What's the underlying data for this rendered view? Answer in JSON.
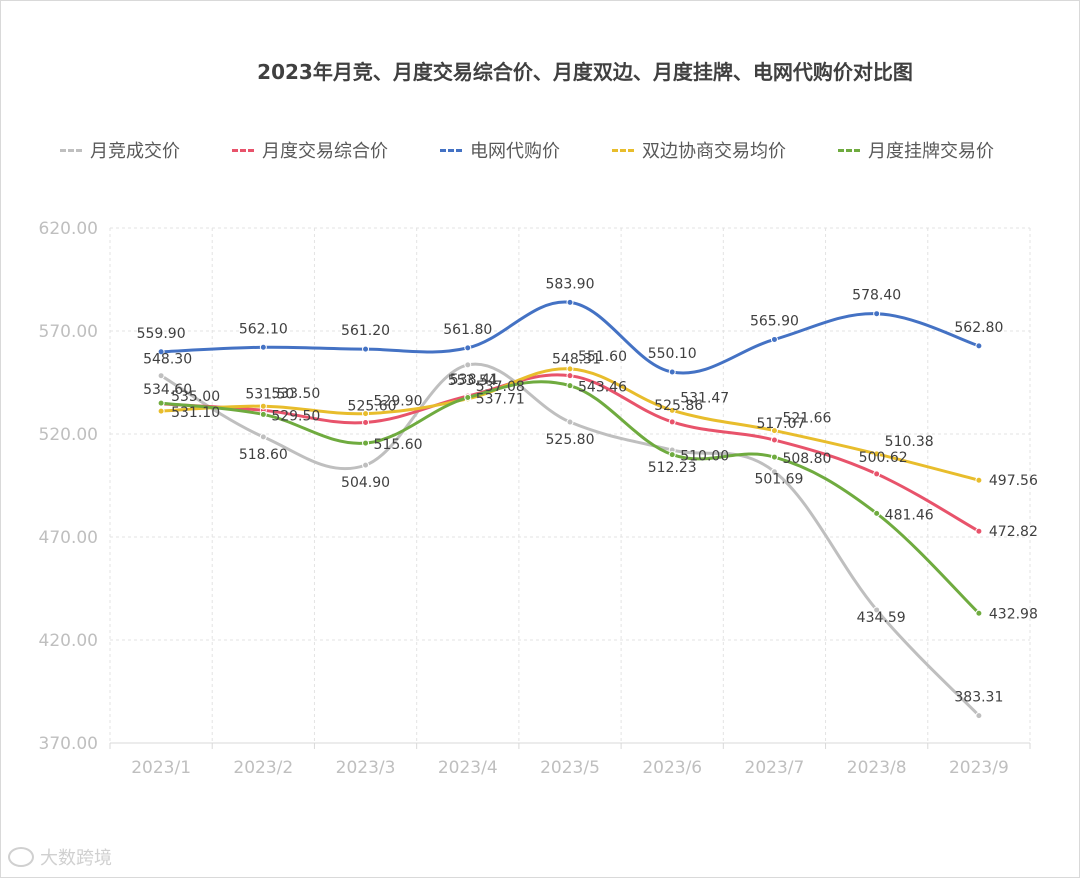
{
  "chart_data": {
    "type": "line",
    "title": "2023年月竞、月度交易综合价、月度双边、月度挂牌、电网代购价对比图",
    "categories": [
      "2023/1",
      "2023/2",
      "2023/3",
      "2023/4",
      "2023/5",
      "2023/6",
      "2023/7",
      "2023/8",
      "2023/9"
    ],
    "ylim": [
      370,
      620
    ],
    "yticks": [
      "370.00",
      "420.00",
      "470.00",
      "520.00",
      "570.00",
      "620.00"
    ],
    "ytick_values": [
      370,
      420,
      470,
      520,
      570,
      620
    ],
    "grid": true,
    "legend_position": "top",
    "series": [
      {
        "name": "月竞成交价",
        "color": "#bfbfbf",
        "values": [
          548.3,
          518.6,
          504.9,
          553.54,
          525.8,
          512.23,
          501.69,
          434.59,
          383.31
        ],
        "labels": [
          "548.30",
          "518.60",
          "504.90",
          "553.54",
          "525.80",
          "512.23",
          "501.69",
          "434.59",
          "383.31"
        ]
      },
      {
        "name": "月度交易综合价",
        "color": "#e8536b",
        "values": [
          534.6,
          531.5,
          525.6,
          538.41,
          548.31,
          525.86,
          517.07,
          500.62,
          472.82
        ],
        "labels": [
          "534.60",
          "531.50",
          "525.60",
          "538.41",
          "548.31",
          "525.86",
          "517.07",
          "500.62",
          "472.82"
        ]
      },
      {
        "name": "电网代购价",
        "color": "#4472c4",
        "values": [
          559.9,
          562.1,
          561.2,
          561.8,
          583.9,
          550.1,
          565.9,
          578.4,
          562.8
        ],
        "labels": [
          "559.90",
          "562.10",
          "561.20",
          "561.80",
          "583.90",
          "550.10",
          "565.90",
          "578.40",
          "562.80"
        ]
      },
      {
        "name": "双边协商交易均价",
        "color": "#e8bd2c",
        "values": [
          531.1,
          533.5,
          529.9,
          537.08,
          551.6,
          531.47,
          521.66,
          510.38,
          497.56
        ],
        "labels": [
          "531.10",
          "533.50",
          "529.90",
          "537.08",
          "551.60",
          "531.47",
          "521.66",
          "510.38",
          "497.56"
        ]
      },
      {
        "name": "月度挂牌交易价",
        "color": "#6fab3f",
        "values": [
          535.0,
          529.5,
          515.6,
          537.71,
          543.46,
          510.0,
          508.8,
          481.46,
          432.98
        ],
        "labels": [
          "535.00",
          "529.50",
          "515.60",
          "537.71",
          "543.46",
          "510.00",
          "508.80",
          "481.46",
          "432.98"
        ]
      }
    ]
  },
  "watermark": {
    "text": "大数跨境"
  }
}
